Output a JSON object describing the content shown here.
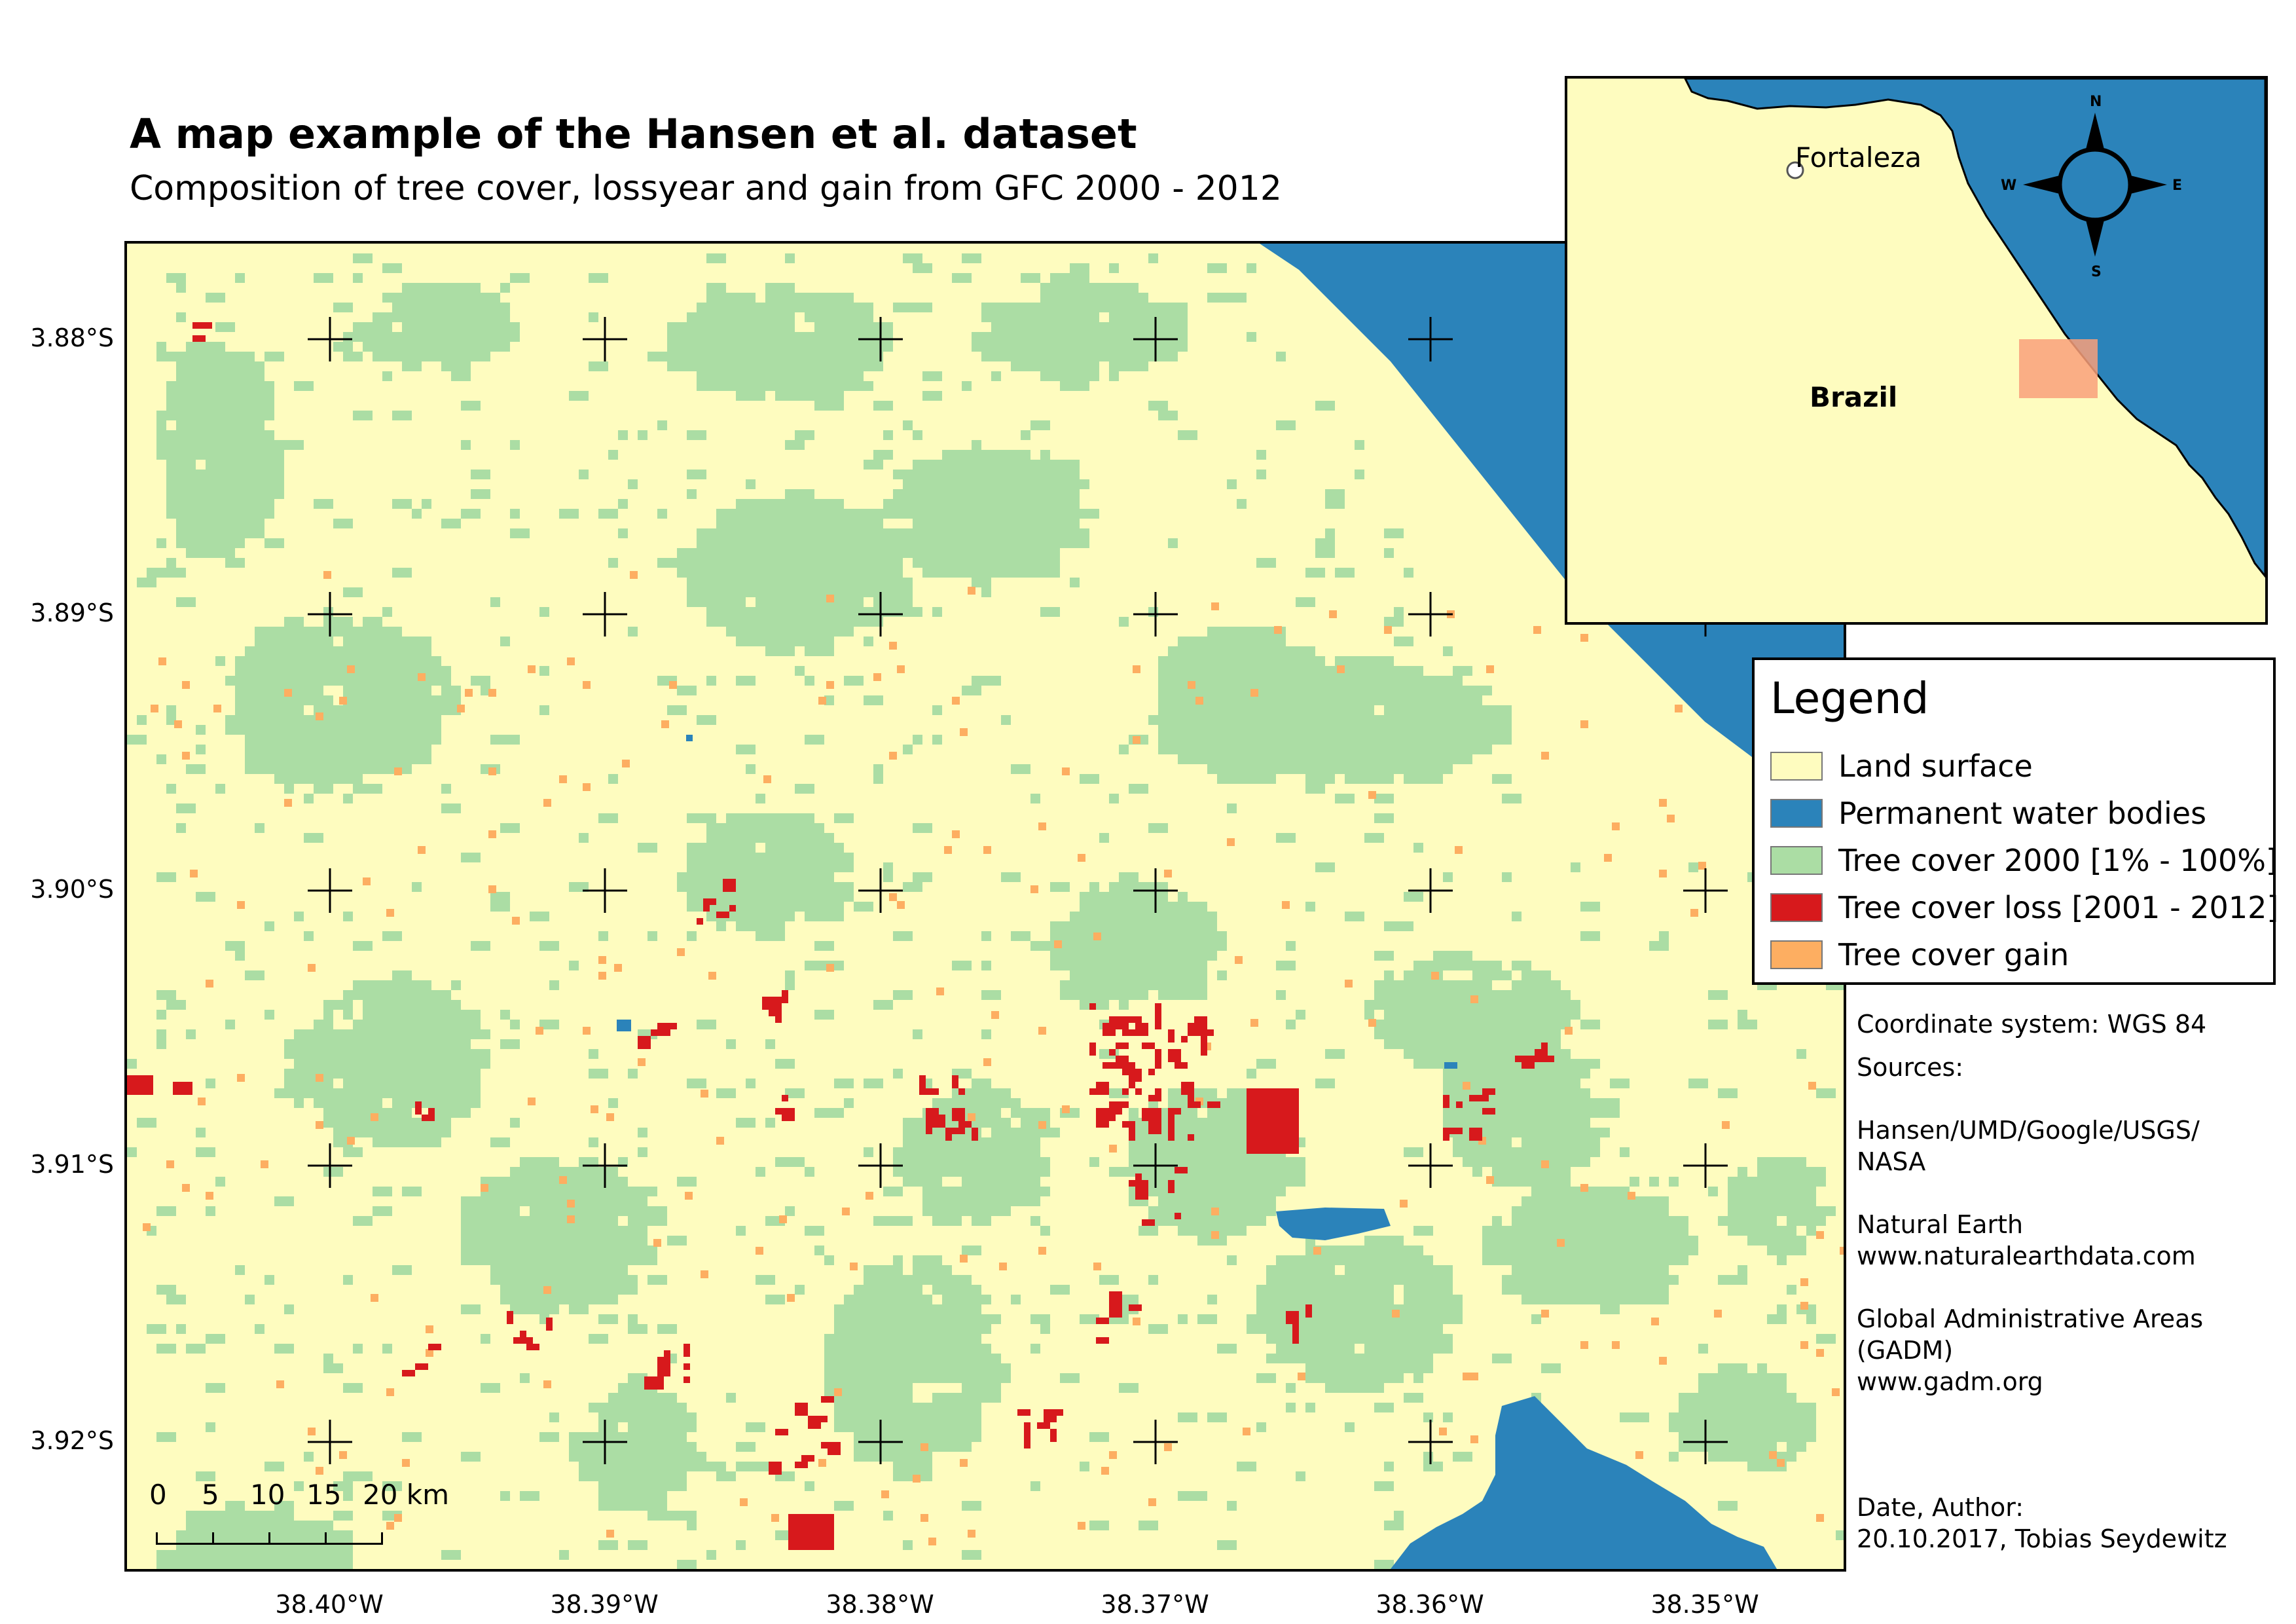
{
  "title": "A map example of the Hansen et al. dataset",
  "subtitle": "Composition of tree cover, lossyear and gain from GFC 2000 - 2012",
  "colors": {
    "land": "#fefcbf",
    "water": "#2b83ba",
    "tree_cover": "#abdda4",
    "loss": "#d7191c",
    "gain": "#fdae61"
  },
  "latitude_labels": [
    "3.88°S",
    "3.89°S",
    "3.90°S",
    "3.91°S",
    "3.92°S"
  ],
  "longitude_labels": [
    "38.40°W",
    "38.39°W",
    "38.38°W",
    "38.37°W",
    "38.36°W",
    "38.35°W"
  ],
  "scale_bar": {
    "labels": [
      "0",
      "5",
      "10",
      "15",
      "20 km"
    ]
  },
  "inset": {
    "city": "Fortaleza",
    "country": "Brazil",
    "compass": {
      "north": "N",
      "south": "S",
      "east": "E",
      "west": "W"
    }
  },
  "legend": {
    "title": "Legend",
    "items": [
      {
        "label": "Land surface",
        "color": "#fefcbf"
      },
      {
        "label": "Permanent water bodies",
        "color": "#2b83ba"
      },
      {
        "label": "Tree cover 2000 [1% - 100%]",
        "color": "#abdda4"
      },
      {
        "label": "Tree cover loss [2001 - 2012]",
        "color": "#d7191c"
      },
      {
        "label": "Tree cover gain",
        "color": "#fdae61"
      }
    ]
  },
  "info": {
    "coordinate_system": "Coordinate system: WGS 84",
    "sources_heading": "Sources:",
    "source_1_line_1": "Hansen/UMD/Google/USGS/",
    "source_1_line_2": "NASA",
    "source_2_line_1": "Natural Earth",
    "source_2_line_2": "www.naturalearthdata.com",
    "source_3_line_1": "Global Administrative Areas",
    "source_3_line_2": "(GADM)",
    "source_3_line_3": "www.gadm.org",
    "date_author_heading": "Date, Author:",
    "date_author": "20.10.2017, Tobias Seydewitz"
  }
}
